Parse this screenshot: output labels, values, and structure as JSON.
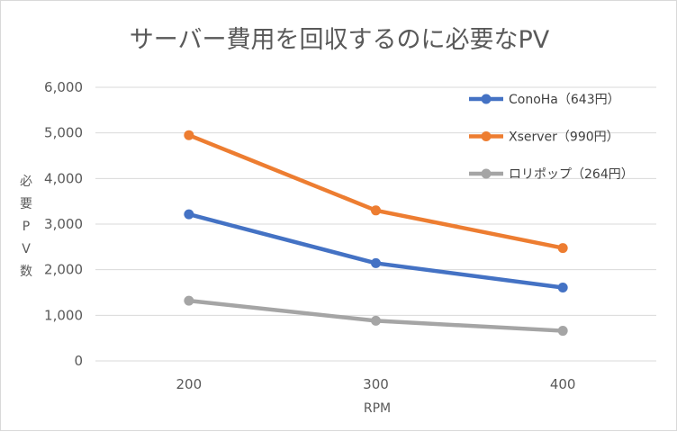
{
  "chart_data": {
    "type": "line",
    "title": "サーバー費用を回収するのに必要なPV",
    "xlabel": "RPM",
    "ylabel": "必要PV数",
    "categories": [
      "200",
      "300",
      "400"
    ],
    "ylim": [
      0,
      6000
    ],
    "y_ticks": [
      {
        "value": 0,
        "label": "0"
      },
      {
        "value": 1000,
        "label": "1,000"
      },
      {
        "value": 2000,
        "label": "2,000"
      },
      {
        "value": 3000,
        "label": "3,000"
      },
      {
        "value": 4000,
        "label": "4,000"
      },
      {
        "value": 5000,
        "label": "5,000"
      },
      {
        "value": 6000,
        "label": "6,000"
      }
    ],
    "grid": true,
    "legend_position": "top-right",
    "series": [
      {
        "name": "ConoHa（643円）",
        "color": "#4472c4",
        "values": [
          3215,
          2143,
          1608
        ]
      },
      {
        "name": "Xserver（990円）",
        "color": "#ed7d31",
        "values": [
          4950,
          3300,
          2475
        ]
      },
      {
        "name": "ロリポップ（264円）",
        "color": "#a5a5a5",
        "values": [
          1320,
          880,
          660
        ]
      }
    ]
  }
}
